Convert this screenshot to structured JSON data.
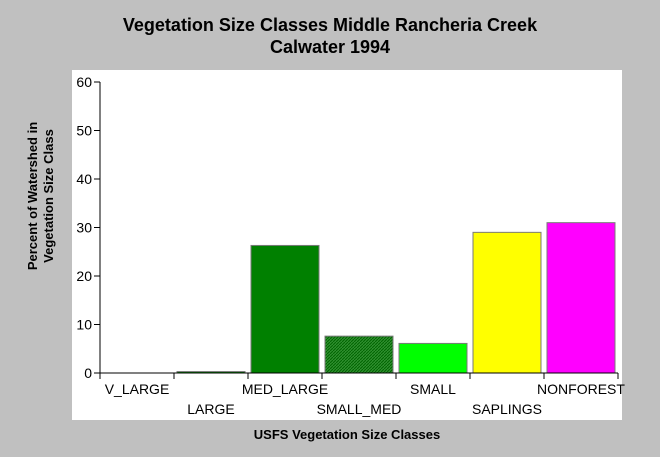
{
  "chart_data": {
    "type": "bar",
    "title_lines": [
      "Vegetation Size Classes Middle Rancheria Creek",
      "Calwater 1994"
    ],
    "xlabel": "USFS Vegetation Size Classes",
    "ylabel_lines": [
      "Percent of Watershed in",
      "Vegetation Size Class"
    ],
    "categories": [
      "V_LARGE",
      "LARGE",
      "MED_LARGE",
      "SMALL_MED",
      "SMALL",
      "SAPLINGS",
      "NONFOREST"
    ],
    "values": [
      0,
      0.3,
      26.3,
      7.6,
      6.1,
      29.0,
      31.0
    ],
    "colors": [
      "#008000",
      "#008000",
      "#008000",
      "#339933",
      "#00ff00",
      "#ffff00",
      "#ff00ff"
    ],
    "hatched": [
      false,
      false,
      false,
      true,
      false,
      false,
      false
    ],
    "ylim": [
      0,
      60
    ],
    "yticks": [
      0,
      10,
      20,
      30,
      40,
      50,
      60
    ],
    "grid": false,
    "legend": "none"
  }
}
